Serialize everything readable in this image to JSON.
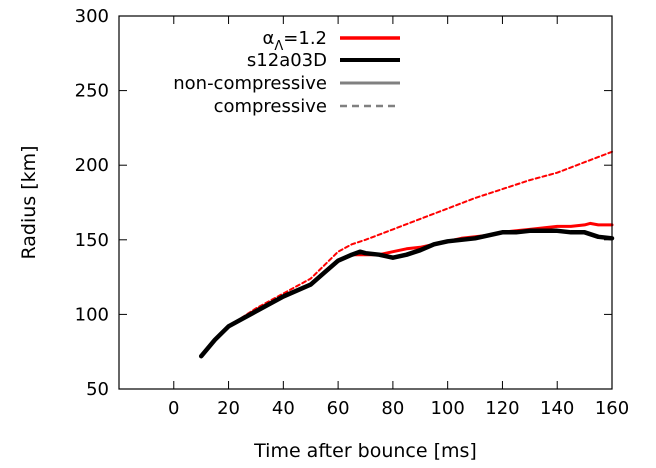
{
  "chart_data": {
    "type": "line",
    "xlabel": "Time after bounce [ms]",
    "ylabel": "Radius [km]",
    "xlim": [
      -20,
      160
    ],
    "ylim": [
      50,
      300
    ],
    "xticks": [
      0,
      20,
      40,
      60,
      80,
      100,
      120,
      140,
      160
    ],
    "yticks": [
      50,
      100,
      150,
      200,
      250,
      300
    ],
    "xtick_labels": [
      "0",
      "20",
      "40",
      "60",
      "80",
      "100",
      "120",
      "140",
      "160"
    ],
    "ytick_labels": [
      "50",
      "100",
      "150",
      "200",
      "250",
      "300"
    ],
    "grid": false,
    "legend": {
      "placement": "top-left",
      "entries": [
        {
          "label": "α",
          "sub": "Λ",
          "suffix": "=1.2",
          "color": "#ff0000",
          "style": "solid"
        },
        {
          "label": "s12a03D",
          "sub": "",
          "suffix": "",
          "color": "#000000",
          "style": "solid"
        },
        {
          "label": "non-compressive",
          "sub": "",
          "suffix": "",
          "color": "#808080",
          "style": "solid"
        },
        {
          "label": "compressive",
          "sub": "",
          "suffix": "",
          "color": "#808080",
          "style": "dashed"
        }
      ]
    },
    "series": [
      {
        "color": "#ff0000",
        "style": "solid",
        "x": [
          10,
          15,
          20,
          30,
          40,
          50,
          55,
          60,
          65,
          70,
          75,
          80,
          85,
          90,
          95,
          100,
          105,
          110,
          115,
          120,
          125,
          130,
          135,
          140,
          145,
          150,
          152,
          155,
          160
        ],
        "y": [
          72,
          83,
          92,
          103,
          112,
          120,
          128,
          136,
          140,
          140,
          140,
          142,
          144,
          145,
          147,
          149,
          151,
          152,
          153,
          155,
          156,
          157,
          158,
          159,
          159,
          160,
          161,
          160,
          160
        ]
      },
      {
        "color": "#ff0000",
        "style": "dashed",
        "x": [
          10,
          15,
          20,
          30,
          40,
          50,
          55,
          60,
          65,
          70,
          80,
          90,
          100,
          110,
          120,
          130,
          140,
          150,
          160
        ],
        "y": [
          72,
          83,
          92,
          104,
          114,
          124,
          133,
          142,
          147,
          150,
          157,
          164,
          171,
          178,
          184,
          190,
          195,
          202,
          209
        ]
      },
      {
        "color": "#000000",
        "style": "solid",
        "x": [
          10,
          15,
          20,
          30,
          40,
          50,
          55,
          60,
          65,
          68,
          70,
          75,
          80,
          85,
          90,
          95,
          100,
          105,
          110,
          115,
          120,
          125,
          130,
          135,
          140,
          145,
          150,
          155,
          160
        ],
        "y": [
          72,
          83,
          92,
          102,
          112,
          120,
          128,
          136,
          140,
          142,
          141,
          140,
          138,
          140,
          143,
          147,
          149,
          150,
          151,
          153,
          155,
          155,
          156,
          156,
          156,
          155,
          155,
          152,
          151
        ]
      }
    ]
  }
}
